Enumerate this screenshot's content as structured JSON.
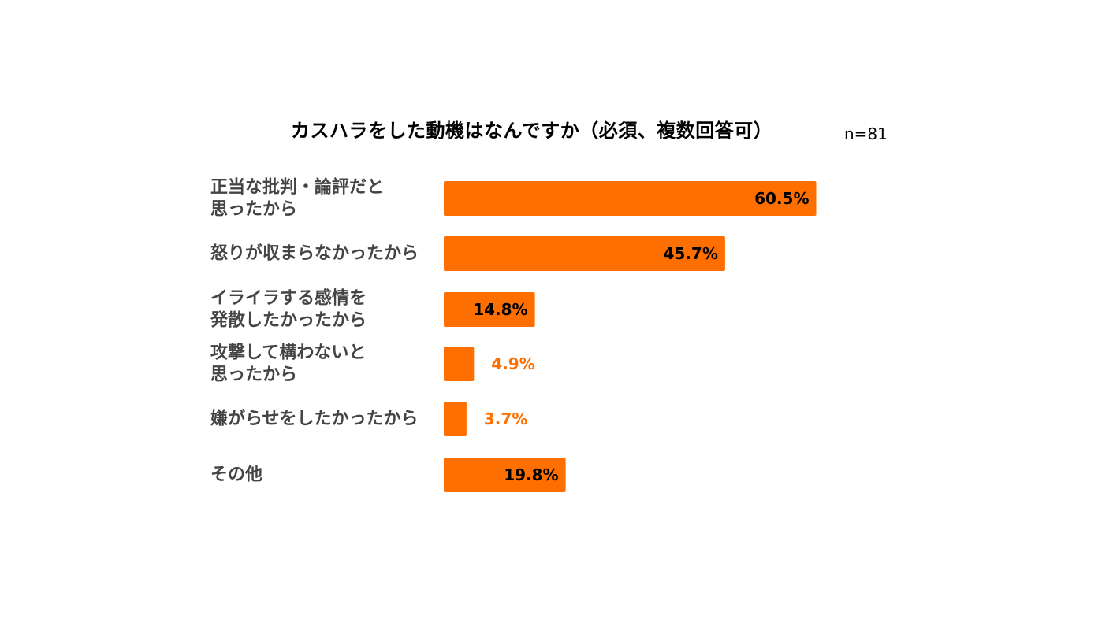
{
  "chart_data": {
    "type": "bar",
    "orientation": "horizontal",
    "title": "カスハラをした動機はなんですか（必須、複数回答可）",
    "note": "n=81",
    "categories": [
      [
        "正当な批判・論評だと",
        "思ったから"
      ],
      [
        "怒りが収まらなかったから"
      ],
      [
        "イライラする感情を",
        "発散したかったから"
      ],
      [
        "攻撃して構わないと",
        "思ったから"
      ],
      [
        "嫌がらせをしたかったから"
      ],
      [
        "その他"
      ]
    ],
    "values": [
      60.5,
      45.7,
      14.8,
      4.9,
      3.7,
      19.8
    ],
    "value_labels": [
      "60.5%",
      "45.7%",
      "14.8%",
      "4.9%",
      "3.7%",
      "19.8%"
    ],
    "unit": "%",
    "xlim": [
      0,
      100
    ],
    "grid": false,
    "legend": "none",
    "colors": {
      "bar": "#FF6F00",
      "label_inside": "#000000",
      "label_outside": "#FF6F00",
      "category_text": "#444444"
    }
  }
}
